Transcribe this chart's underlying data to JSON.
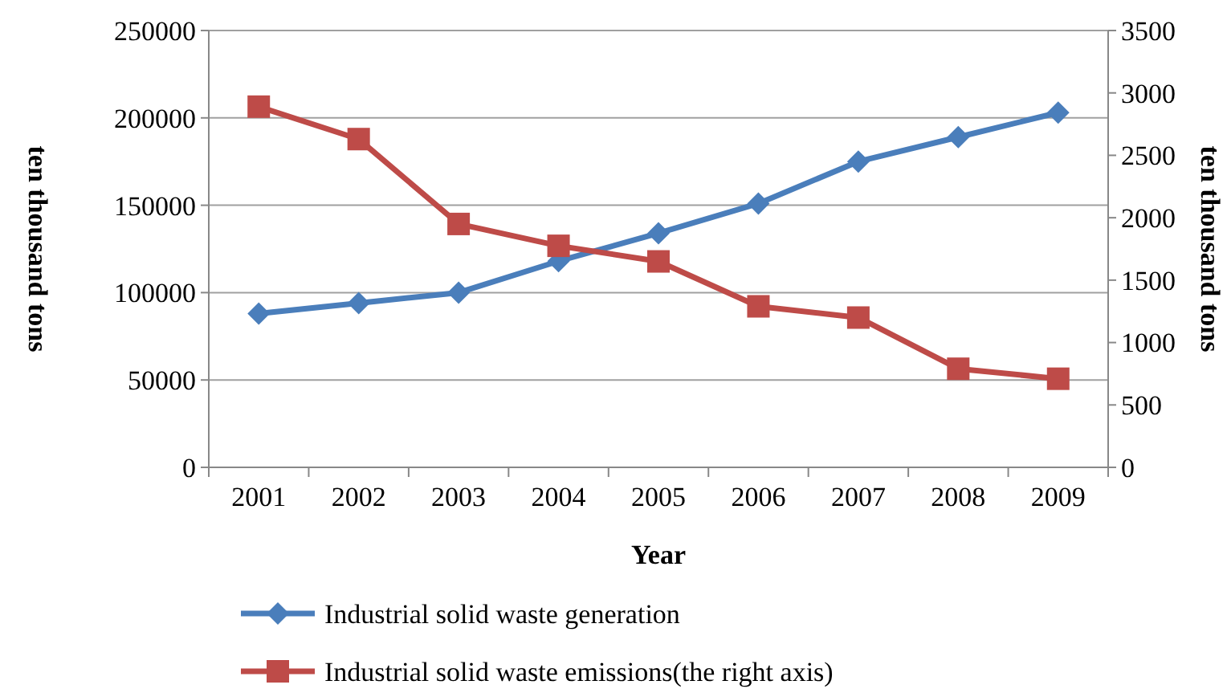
{
  "chart_data": {
    "type": "line",
    "xlabel": "Year",
    "ylabel": "ten thousand tons",
    "y2label": "ten thousand tons",
    "categories": [
      "2001",
      "2002",
      "2003",
      "2004",
      "2005",
      "2006",
      "2007",
      "2008",
      "2009"
    ],
    "series": [
      {
        "name": "Industrial solid waste generation",
        "color": "#4a7ebb",
        "marker": "diamond",
        "values": [
          88000,
          94000,
          100000,
          118000,
          134000,
          151000,
          175000,
          189000,
          203000
        ]
      },
      {
        "name": "Industrial solid waste emissions(the right axis)",
        "color": "#be4b48",
        "marker": "square",
        "axis": "y2",
        "values": [
          2890,
          2630,
          1950,
          1775,
          1650,
          1290,
          1200,
          790,
          710
        ]
      }
    ],
    "ylim": [
      0,
      250000
    ],
    "yticks": [
      0,
      50000,
      100000,
      150000,
      200000,
      250000
    ],
    "y2lim": [
      0,
      3500
    ],
    "y2ticks": [
      0,
      500,
      1000,
      1500,
      2000,
      2500,
      3000,
      3500
    ],
    "grid": "y",
    "legend": "bottom"
  }
}
